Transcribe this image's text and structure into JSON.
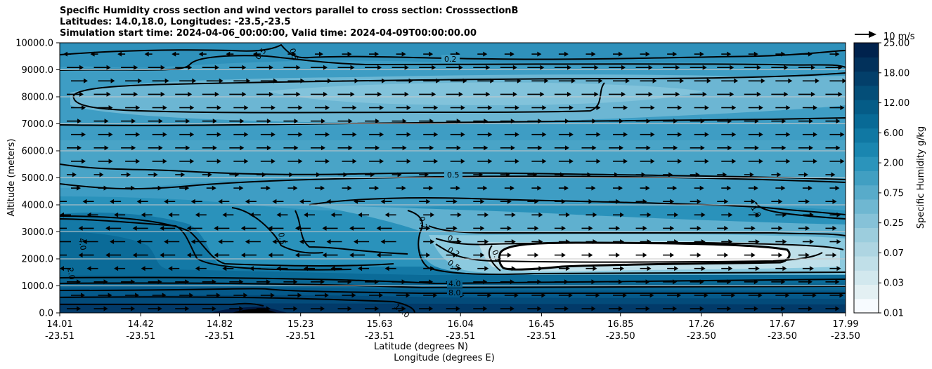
{
  "chart_data": {
    "type": "heatmap",
    "title_lines": [
      "Specific Humidity cross section and wind vectors parallel to cross section: CrosssectionB",
      "Latitudes: 14.0,18.0, Longitudes: -23.5,-23.5",
      "Simulation start time: 2024-04-06_00:00:00, Valid time: 2024-04-09T00:00:00.00"
    ],
    "ylabel": "Altitude (meters)",
    "xlabel_lat": "Latitude (degrees N)",
    "xlabel_lon": "Longitude (degrees E)",
    "ylim": [
      0,
      10000
    ],
    "y_ticks": [
      "0.0",
      "1000.0",
      "2000.0",
      "3000.0",
      "4000.0",
      "5000.0",
      "6000.0",
      "7000.0",
      "8000.0",
      "9000.0",
      "10000.0"
    ],
    "x_ticks_lat": [
      "14.01",
      "14.42",
      "14.82",
      "15.23",
      "15.63",
      "16.04",
      "16.45",
      "16.85",
      "17.26",
      "17.67",
      "17.99"
    ],
    "x_ticks_lon": [
      "-23.51",
      "-23.51",
      "-23.51",
      "-23.51",
      "-23.51",
      "-23.51",
      "-23.51",
      "-23.50",
      "-23.50",
      "-23.50",
      "-23.50"
    ],
    "colorbar": {
      "label": "Specific Humidity g/kg",
      "tick_labels": [
        "0.01",
        "0.03",
        "0.07",
        "0.25",
        "0.75",
        "2.00",
        "6.00",
        "12.00",
        "18.00",
        "25.00"
      ],
      "levels": [
        "0.01",
        "0.02",
        "0.03",
        "0.05",
        "0.07",
        "0.1",
        "0.25",
        "0.5",
        "0.75",
        "1.0",
        "2.00",
        "4.0",
        "6.00",
        "8.0",
        "12.00",
        "15.0",
        "18.00",
        "21.0",
        "25.00"
      ],
      "colors": [
        "#f7fbff",
        "#e3f0f3",
        "#d2e8ee",
        "#c0dfe8",
        "#aed5e2",
        "#9ccddd",
        "#86c2d8",
        "#6fb7d1",
        "#58abca",
        "#419fc2",
        "#2b94bb",
        "#1a86b0",
        "#1078a3",
        "#086a96",
        "#055c87",
        "#044e78",
        "#033f6a",
        "#02315b",
        "#00224d"
      ],
      "cmap_top": "#001f4d"
    },
    "quiver_key": {
      "label": "10 m/s",
      "value": 10
    },
    "contour_labels": [
      "0.2",
      "0.5",
      "1.0",
      "4.0",
      "2.0",
      "0.5",
      "0.2",
      "0.1",
      "0.2",
      "0.5",
      "4.0",
      "8.0",
      "12.0",
      "0.5",
      "0.5",
      "0.1"
    ],
    "grid": "horizontal",
    "colors": {
      "mid_blue": "#4aa3c6",
      "dark_blue": "#08306b",
      "light_blue": "#7fc1d9",
      "dry_white": "#ffffff"
    }
  }
}
